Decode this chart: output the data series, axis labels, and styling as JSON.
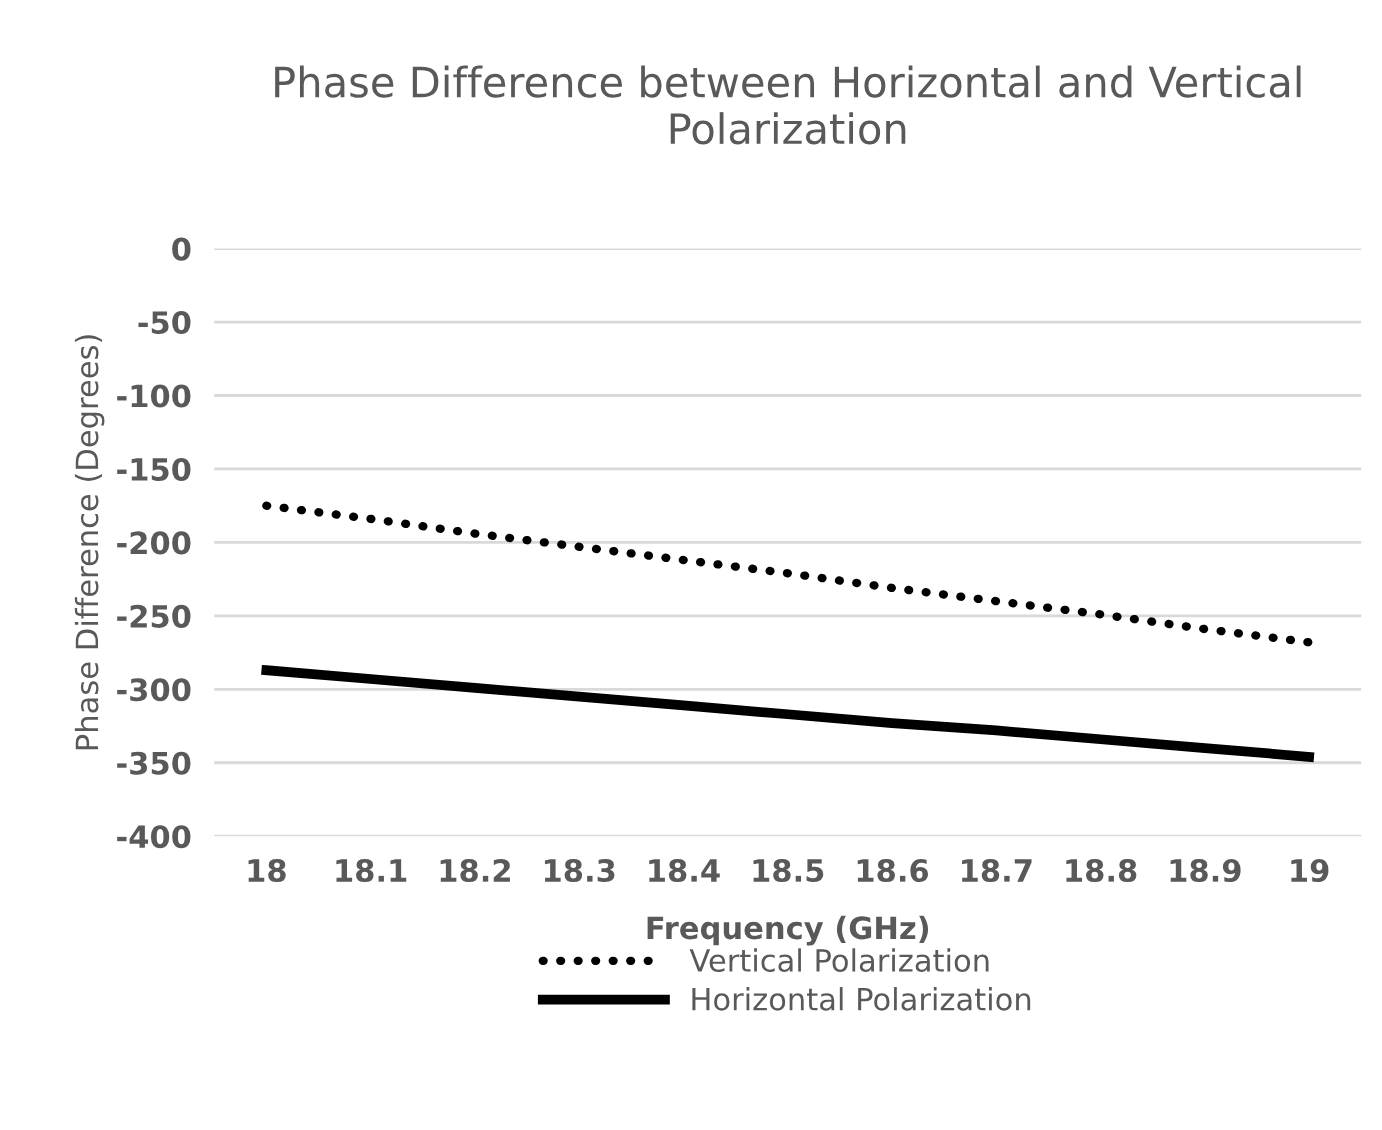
{
  "chart_data": {
    "type": "line",
    "title": "Phase Difference between Horizontal and Vertical Polarization",
    "xlabel": "Frequency (GHz)",
    "ylabel": "Phase Difference (Degrees)",
    "categories": [
      "18",
      "18.1",
      "18.2",
      "18.3",
      "18.4",
      "18.5",
      "18.6",
      "18.7",
      "18.8",
      "18.9",
      "19"
    ],
    "series": [
      {
        "name": "Vertical Polarization",
        "color": "#000000",
        "line_style": "dotted",
        "values": [
          -175,
          -184,
          -194,
          -203,
          -212,
          -221,
          -231,
          -240,
          -249,
          -259,
          -268
        ]
      },
      {
        "name": "Horizontal Polarization",
        "color": "#000000",
        "line_style": "solid",
        "values": [
          -287,
          -293,
          -299,
          -305,
          -311,
          -317,
          -323,
          -328,
          -334,
          -340,
          -346
        ]
      }
    ],
    "ylim": [
      -400,
      0
    ],
    "yticks": [
      0,
      -50,
      -100,
      -150,
      -200,
      -250,
      -300,
      -350,
      -400
    ],
    "grid": "y",
    "legend": "bottom",
    "marker": "none"
  }
}
